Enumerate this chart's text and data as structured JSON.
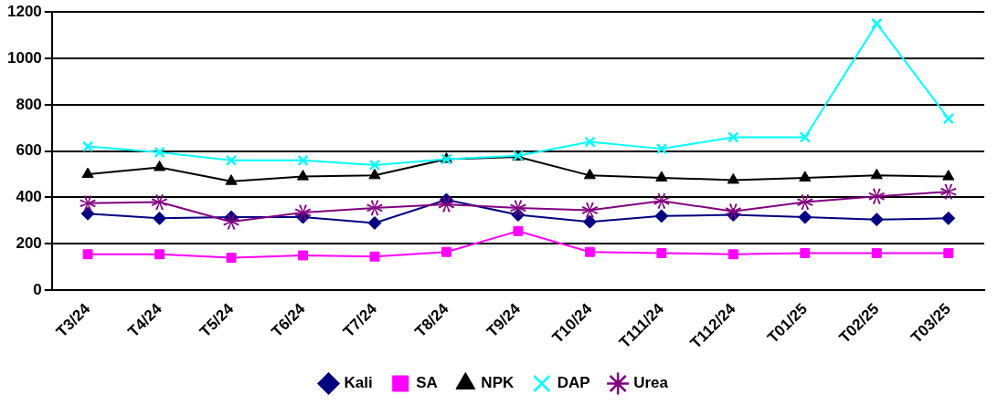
{
  "chart_data": {
    "type": "line",
    "categories": [
      "T3/24",
      "T4/24",
      "T5/24",
      "T6/24",
      "T7/24",
      "T8/24",
      "T9/24",
      "T10/24",
      "T111/24",
      "T112/24",
      "T01/25",
      "T02/25",
      "T03/25"
    ],
    "series": [
      {
        "name": "Kali",
        "color": "#000080",
        "marker": "diamond",
        "values": [
          330,
          310,
          315,
          315,
          290,
          390,
          325,
          295,
          320,
          325,
          315,
          305,
          310
        ]
      },
      {
        "name": "SA",
        "color": "#ff00ff",
        "marker": "square",
        "values": [
          155,
          155,
          140,
          150,
          145,
          165,
          255,
          165,
          160,
          155,
          160,
          160,
          160
        ]
      },
      {
        "name": "NPK",
        "color": "#000000",
        "marker": "triangle",
        "values": [
          500,
          530,
          470,
          490,
          495,
          565,
          575,
          495,
          485,
          475,
          485,
          495,
          490
        ]
      },
      {
        "name": "DAP",
        "color": "#00ffff",
        "marker": "cross",
        "values": [
          620,
          595,
          560,
          560,
          540,
          565,
          580,
          640,
          610,
          660,
          660,
          1150,
          740
        ]
      },
      {
        "name": "Urea",
        "color": "#800080",
        "marker": "star",
        "values": [
          375,
          380,
          295,
          335,
          355,
          370,
          355,
          345,
          385,
          340,
          380,
          405,
          425
        ]
      }
    ],
    "ylim": [
      0,
      1200
    ],
    "yticks": [
      0,
      200,
      400,
      600,
      800,
      1000,
      1200
    ],
    "grid": "y",
    "legend": "bottom",
    "line_style": "solid"
  }
}
